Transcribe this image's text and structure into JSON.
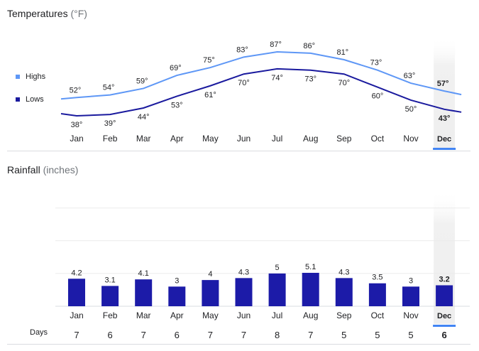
{
  "temperature": {
    "title": "Temperatures",
    "unit": "(°F)",
    "legend": {
      "highs": "Highs",
      "lows": "Lows"
    },
    "colors": {
      "highs": "#5e97f6",
      "lows": "#1a1a9e"
    },
    "selected_month": "Dec"
  },
  "rainfall": {
    "title": "Rainfall",
    "unit": "(inches)",
    "color": "#1c1ba8",
    "days_label": "Days"
  },
  "chart_data": [
    {
      "type": "line",
      "title": "Temperatures",
      "categories": [
        "Jan",
        "Feb",
        "Mar",
        "Apr",
        "May",
        "Jun",
        "Jul",
        "Aug",
        "Sep",
        "Oct",
        "Nov",
        "Dec"
      ],
      "series": [
        {
          "name": "Highs",
          "values": [
            52,
            54,
            59,
            69,
            75,
            83,
            87,
            86,
            81,
            73,
            63,
            57
          ],
          "labels": [
            "52°",
            "54°",
            "59°",
            "69°",
            "75°",
            "83°",
            "87°",
            "86°",
            "81°",
            "73°",
            "63°",
            "57°"
          ]
        },
        {
          "name": "Lows",
          "values": [
            38,
            39,
            44,
            53,
            61,
            70,
            74,
            73,
            70,
            60,
            50,
            43
          ],
          "labels": [
            "38°",
            "39°",
            "44°",
            "53°",
            "61°",
            "70°",
            "74°",
            "73°",
            "70°",
            "60°",
            "50°",
            "43°"
          ]
        }
      ],
      "legend": "left"
    },
    {
      "type": "bar",
      "title": "Rainfall",
      "categories": [
        "Jan",
        "Feb",
        "Mar",
        "Apr",
        "May",
        "Jun",
        "Jul",
        "Aug",
        "Sep",
        "Oct",
        "Nov",
        "Dec"
      ],
      "values": [
        4.2,
        3.1,
        4.1,
        3,
        4,
        4.3,
        5,
        5.1,
        4.3,
        3.5,
        3,
        3.2
      ],
      "labels": [
        "4.2",
        "3.1",
        "4.1",
        "3",
        "4",
        "4.3",
        "5",
        "5.1",
        "4.3",
        "3.5",
        "3",
        "3.2"
      ],
      "days": [
        "7",
        "6",
        "7",
        "6",
        "7",
        "7",
        "8",
        "7",
        "5",
        "5",
        "5",
        "6"
      ],
      "ylim": [
        0,
        10
      ],
      "grid": true
    }
  ]
}
